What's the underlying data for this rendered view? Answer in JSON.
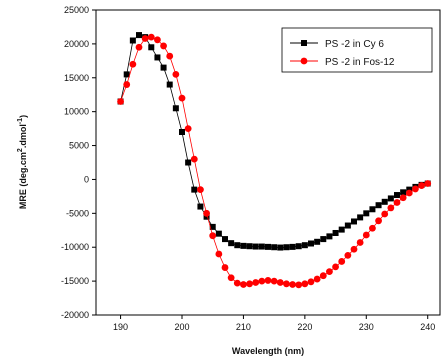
{
  "chart_data": {
    "type": "scatter",
    "title": "",
    "xlabel": "Wavelength (nm)",
    "ylabel_parts": [
      "MRE (deg.cm",
      "2",
      ".dmol",
      "-1",
      ")"
    ],
    "xlim": [
      186,
      242
    ],
    "ylim": [
      -20000,
      25000
    ],
    "x_ticks": [
      190,
      200,
      210,
      220,
      230,
      240
    ],
    "y_ticks": [
      -20000,
      -15000,
      -10000,
      -5000,
      0,
      5000,
      10000,
      15000,
      20000,
      25000
    ],
    "legend_position": "top-right",
    "grid": false,
    "series": [
      {
        "name": "PS -2 in Cy 6",
        "color": "#000000",
        "marker": "square",
        "x": [
          190,
          191,
          192,
          193,
          194,
          195,
          196,
          197,
          198,
          199,
          200,
          201,
          202,
          203,
          204,
          205,
          206,
          207,
          208,
          209,
          210,
          211,
          212,
          213,
          214,
          215,
          216,
          217,
          218,
          219,
          220,
          221,
          222,
          223,
          224,
          225,
          226,
          227,
          228,
          229,
          230,
          231,
          232,
          233,
          234,
          235,
          236,
          237,
          238,
          239,
          240
        ],
        "y": [
          11500,
          15500,
          20500,
          21300,
          21000,
          19500,
          18000,
          16500,
          14000,
          10500,
          7000,
          2500,
          -1500,
          -4000,
          -5500,
          -7000,
          -8000,
          -8800,
          -9400,
          -9700,
          -9800,
          -9850,
          -9900,
          -9900,
          -9950,
          -10000,
          -10050,
          -10000,
          -9950,
          -9850,
          -9700,
          -9450,
          -9200,
          -8800,
          -8400,
          -7900,
          -7400,
          -6800,
          -6200,
          -5600,
          -5000,
          -4400,
          -3800,
          -3300,
          -2800,
          -2300,
          -1900,
          -1500,
          -1100,
          -800,
          -600
        ]
      },
      {
        "name": "PS -2 in Fos-12",
        "color": "#ff0000",
        "marker": "circle",
        "x": [
          190,
          191,
          192,
          193,
          194,
          195,
          196,
          197,
          198,
          199,
          200,
          201,
          202,
          203,
          204,
          205,
          206,
          207,
          208,
          209,
          210,
          211,
          212,
          213,
          214,
          215,
          216,
          217,
          218,
          219,
          220,
          221,
          222,
          223,
          224,
          225,
          226,
          227,
          228,
          229,
          230,
          231,
          232,
          233,
          234,
          235,
          236,
          237,
          238,
          239,
          240
        ],
        "y": [
          11500,
          14000,
          17000,
          19500,
          20800,
          21000,
          20600,
          19700,
          18200,
          15500,
          12000,
          7500,
          3000,
          -1500,
          -5000,
          -8300,
          -11000,
          -13000,
          -14500,
          -15300,
          -15500,
          -15400,
          -15200,
          -15000,
          -14900,
          -15000,
          -15200,
          -15400,
          -15500,
          -15550,
          -15400,
          -15100,
          -14700,
          -14200,
          -13600,
          -12900,
          -12100,
          -11200,
          -10300,
          -9300,
          -8200,
          -7200,
          -6100,
          -5100,
          -4200,
          -3400,
          -2700,
          -2000,
          -1400,
          -900,
          -600
        ]
      }
    ]
  }
}
